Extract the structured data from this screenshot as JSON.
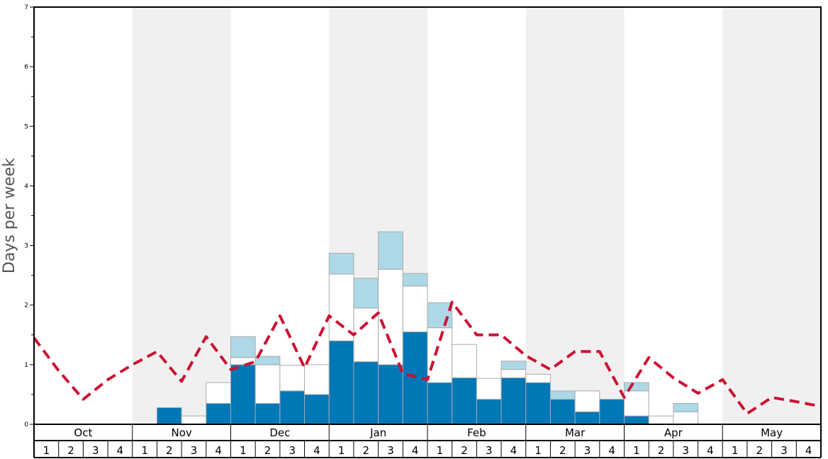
{
  "colors": {
    "band_shade": "#f0f0f0",
    "dark": "#0077b6",
    "white": "#ffffff",
    "light": "#add8e6",
    "bar_stroke": "#aaaaaa",
    "line": "#cc1133",
    "axis": "#000000"
  },
  "chart_data": {
    "type": "bar",
    "ylabel": "Days per week",
    "ylim": [
      0,
      7
    ],
    "yticks": [
      "0",
      "1",
      "2",
      "3",
      "4",
      "5",
      "6",
      "7"
    ],
    "months": [
      "Oct",
      "Nov",
      "Dec",
      "Jan",
      "Feb",
      "Mar",
      "Apr",
      "May"
    ],
    "week_labels": [
      "1",
      "2",
      "3",
      "4"
    ],
    "shaded_months": [
      "Nov",
      "Jan",
      "Mar",
      "May"
    ],
    "stacked_order": [
      "dark",
      "white",
      "light"
    ],
    "series": [
      {
        "key": "dark",
        "values": [
          0,
          0,
          0,
          0,
          0,
          0.28,
          0,
          0.35,
          1.0,
          0.35,
          0.56,
          0.5,
          1.4,
          1.05,
          1.0,
          1.55,
          0.7,
          0.78,
          0.42,
          0.78,
          0.7,
          0.42,
          0.21,
          0.42,
          0.14,
          0,
          0,
          0,
          0,
          0,
          0,
          0
        ]
      },
      {
        "key": "white",
        "values": [
          0,
          0,
          0,
          0,
          0,
          0,
          0.14,
          0.35,
          0.12,
          0.65,
          0.43,
          0.5,
          1.12,
          0.9,
          1.6,
          0.77,
          0.92,
          0.56,
          0.35,
          0.14,
          0.14,
          0,
          0.35,
          0,
          0.42,
          0.14,
          0.21,
          0,
          0,
          0,
          0,
          0
        ]
      },
      {
        "key": "light",
        "values": [
          0,
          0,
          0,
          0,
          0,
          0,
          0,
          0,
          0.35,
          0.14,
          0,
          0,
          0.35,
          0.5,
          0.63,
          0.21,
          0.42,
          0,
          0,
          0.14,
          0,
          0.14,
          0,
          0,
          0.14,
          0,
          0.14,
          0,
          0,
          0,
          0,
          0
        ]
      }
    ],
    "line": {
      "style": "dashed",
      "values": [
        1.45,
        0.9,
        0.42,
        0.75,
        1.0,
        1.22,
        0.72,
        1.47,
        0.92,
        1.05,
        1.82,
        0.95,
        1.82,
        1.5,
        1.87,
        0.85,
        0.75,
        2.05,
        1.5,
        1.5,
        1.15,
        0.92,
        1.22,
        1.22,
        0.45,
        1.12,
        0.78,
        0.52,
        0.75,
        0.18,
        0.45,
        0.38,
        0.3
      ]
    }
  }
}
